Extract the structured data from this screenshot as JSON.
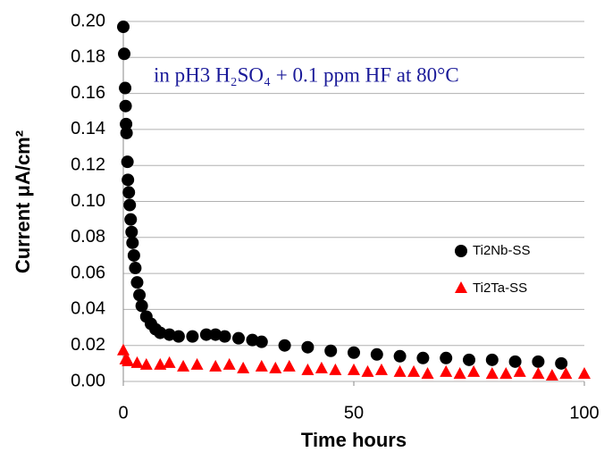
{
  "chart_data": {
    "type": "scatter",
    "annotation": "in pH3 H₂SO₄ + 0.1 ppm HF at 80°C",
    "x_label": "Time    hours",
    "y_label": "Current   μA/cm²",
    "xlim": [
      0,
      100
    ],
    "xticks": [
      0,
      50,
      100
    ],
    "ylim": [
      0,
      0.2
    ],
    "yticks": [
      {
        "value": 0,
        "label": "0.00"
      },
      {
        "value": 0.02,
        "label": "0.02"
      },
      {
        "value": 0.04,
        "label": "0.04"
      },
      {
        "value": 0.06,
        "label": "0.06"
      },
      {
        "value": 0.08,
        "label": "0.08"
      },
      {
        "value": 0.1,
        "label": "0.10"
      },
      {
        "value": 0.12,
        "label": "0.12"
      },
      {
        "value": 0.14,
        "label": "0.14"
      },
      {
        "value": 0.16,
        "label": "0.16"
      },
      {
        "value": 0.18,
        "label": "0.18"
      },
      {
        "value": 0.2,
        "label": "0.20"
      }
    ],
    "grid": true,
    "legend": "right",
    "series": [
      {
        "name": "Ti2Nb-SS",
        "color": "#000000",
        "marker": "circle",
        "x": [
          0,
          0.2,
          0.4,
          0.5,
          0.6,
          0.7,
          0.9,
          1.0,
          1.2,
          1.4,
          1.6,
          1.8,
          2.0,
          2.3,
          2.6,
          3.0,
          3.5,
          4.0,
          5,
          6,
          7,
          8,
          10,
          12,
          15,
          18,
          20,
          22,
          25,
          28,
          30,
          35,
          40,
          45,
          50,
          55,
          60,
          65,
          70,
          75,
          80,
          85,
          90,
          95
        ],
        "values": [
          0.197,
          0.182,
          0.163,
          0.153,
          0.143,
          0.138,
          0.122,
          0.112,
          0.105,
          0.098,
          0.09,
          0.083,
          0.077,
          0.07,
          0.063,
          0.055,
          0.048,
          0.042,
          0.036,
          0.032,
          0.029,
          0.027,
          0.026,
          0.025,
          0.025,
          0.026,
          0.026,
          0.025,
          0.024,
          0.023,
          0.022,
          0.02,
          0.019,
          0.017,
          0.016,
          0.015,
          0.014,
          0.013,
          0.013,
          0.012,
          0.012,
          0.011,
          0.011,
          0.01
        ]
      },
      {
        "name": "Ti2Ta-SS",
        "color": "#ff0000",
        "marker": "triangle",
        "x": [
          0,
          0.5,
          1,
          3,
          5,
          8,
          10,
          13,
          16,
          20,
          23,
          26,
          30,
          33,
          36,
          40,
          43,
          46,
          50,
          53,
          56,
          60,
          63,
          66,
          70,
          73,
          76,
          80,
          83,
          86,
          90,
          93,
          96,
          100
        ],
        "values": [
          0.017,
          0.012,
          0.011,
          0.01,
          0.009,
          0.009,
          0.01,
          0.008,
          0.009,
          0.008,
          0.009,
          0.007,
          0.008,
          0.007,
          0.008,
          0.006,
          0.007,
          0.006,
          0.006,
          0.005,
          0.006,
          0.005,
          0.005,
          0.004,
          0.005,
          0.004,
          0.005,
          0.004,
          0.004,
          0.005,
          0.004,
          0.003,
          0.004,
          0.004
        ]
      }
    ]
  }
}
